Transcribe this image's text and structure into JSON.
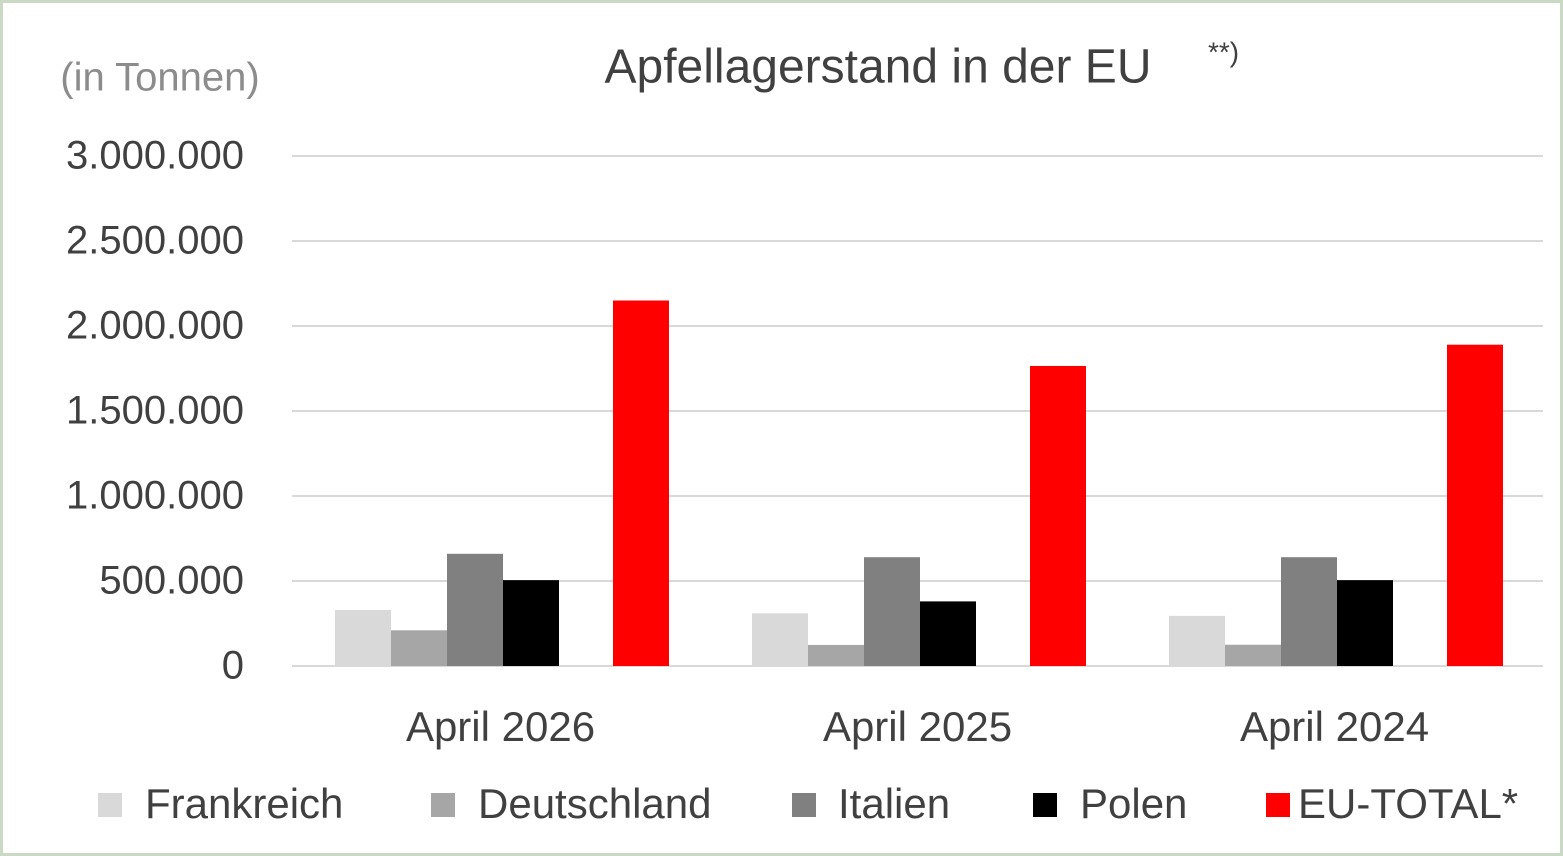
{
  "chart_data": {
    "type": "bar",
    "title": "Apfellagerstand in der EU",
    "title_note": "**)",
    "y_label": "(in Tonnen)",
    "categories": [
      "April 2026",
      "April 2025",
      "April 2024"
    ],
    "series": [
      {
        "name": "Frankreich",
        "color": "#d9d9d9",
        "values": [
          330000,
          310000,
          295000
        ]
      },
      {
        "name": "Deutschland",
        "color": "#a6a6a6",
        "values": [
          210000,
          124000,
          125000
        ]
      },
      {
        "name": "Italien",
        "color": "#808080",
        "values": [
          660000,
          640000,
          640000
        ]
      },
      {
        "name": "Polen",
        "color": "#000000",
        "values": [
          505000,
          380000,
          505000
        ]
      },
      {
        "name": "EU-TOTAL*",
        "color": "#ff0000",
        "values": [
          2150000,
          1765000,
          1890000
        ]
      }
    ],
    "ylim": [
      0,
      3000000
    ],
    "yticks": [
      0,
      {
        "value": 500000,
        "label": "500.000"
      },
      {
        "value": 1000000,
        "label": "1.000.000"
      },
      {
        "value": 1500000,
        "label": "1.500.000"
      },
      {
        "value": 2000000,
        "label": "2.000.000"
      },
      {
        "value": 2500000,
        "label": "2.500.000"
      },
      {
        "value": 3000000,
        "label": "3.000.000"
      }
    ],
    "grid": true,
    "legend": "bottom"
  }
}
